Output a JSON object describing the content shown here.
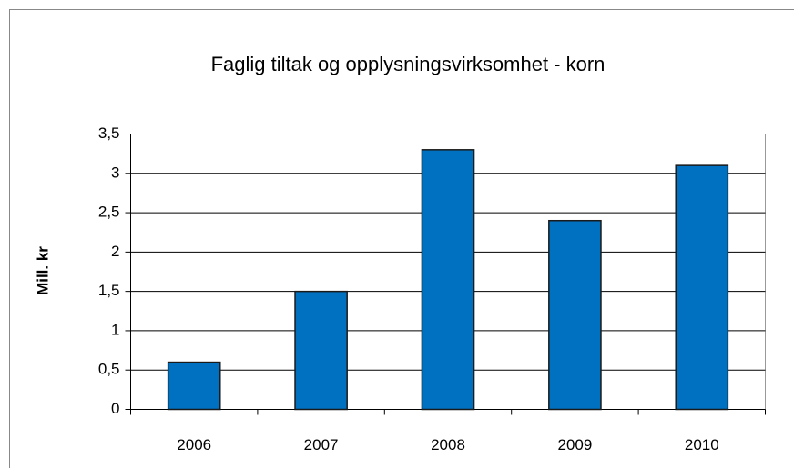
{
  "chart_data": {
    "type": "bar",
    "title": "Faglig tiltak og opplysningsvirksomhet - korn",
    "y_label": "Mill. kr",
    "categories": [
      "2006",
      "2007",
      "2008",
      "2009",
      "2010"
    ],
    "values": [
      0.6,
      1.5,
      3.3,
      2.4,
      3.1
    ],
    "color": "#0070c0",
    "ylim": [
      0,
      3.5
    ],
    "yticks": [
      0,
      {
        "value": 0.5,
        "label": "0,5"
      },
      1,
      {
        "value": 1.5,
        "label": "1,5"
      },
      2,
      {
        "value": 2.5,
        "label": "2,5"
      },
      3,
      {
        "value": 3.5,
        "label": "3,5"
      }
    ],
    "grid": true
  }
}
